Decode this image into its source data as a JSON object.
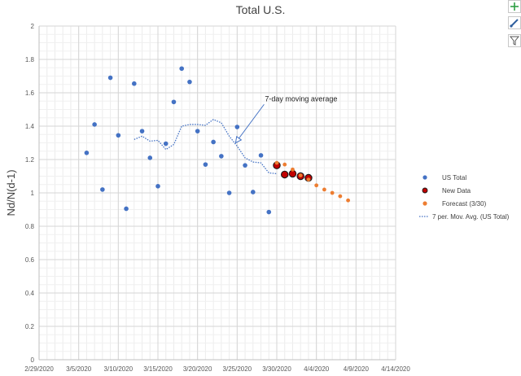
{
  "chart_data": {
    "type": "scatter",
    "title": "Total U.S.",
    "xlabel": "",
    "ylabel": "Nd/N(d-1)",
    "ylim": [
      0,
      2
    ],
    "yticks": [
      0,
      0.2,
      0.4,
      0.6,
      0.8,
      1,
      1.2,
      1.4,
      1.6,
      1.8,
      2
    ],
    "ytick_labels": [
      "0",
      "0.2",
      "0.4",
      "0.6",
      "0.8",
      "1",
      "1.2",
      "1.4",
      "1.6",
      "1.8",
      "2"
    ],
    "x_axis_unit": "days since 2/29/2020",
    "xlim": [
      0,
      45
    ],
    "xticks": [
      0,
      5,
      10,
      15,
      20,
      25,
      30,
      35,
      40,
      45
    ],
    "xtick_labels": [
      "2/29/2020",
      "3/5/2020",
      "3/10/2020",
      "3/15/2020",
      "3/20/2020",
      "3/25/2020",
      "3/30/2020",
      "4/4/2020",
      "4/9/2020",
      "4/14/2020"
    ],
    "grid": true,
    "legend_position": "right",
    "series": [
      {
        "name": "US Total",
        "marker": "dot",
        "color": "#4472c4",
        "x": [
          6,
          7,
          8,
          9,
          10,
          11,
          12,
          13,
          14,
          15,
          16,
          17,
          18,
          19,
          20,
          21,
          22,
          23,
          24,
          25,
          26,
          27,
          28,
          29
        ],
        "y": [
          1.24,
          1.41,
          1.02,
          1.69,
          1.345,
          0.905,
          1.655,
          1.37,
          1.21,
          1.04,
          1.295,
          1.545,
          1.745,
          1.665,
          1.37,
          1.17,
          1.305,
          1.22,
          1.0,
          1.395,
          1.165,
          1.005,
          1.225,
          0.885
        ]
      },
      {
        "name": "New Data",
        "marker": "large-dot",
        "color": "#c00000",
        "x": [
          30,
          31,
          32,
          33,
          34
        ],
        "y": [
          1.165,
          1.11,
          1.115,
          1.1,
          1.09
        ]
      },
      {
        "name": "Forecast (3/30)",
        "marker": "dot",
        "color": "#ed7d31",
        "x": [
          30,
          31,
          32,
          33,
          34,
          35,
          36,
          37,
          38,
          39
        ],
        "y": [
          1.18,
          1.17,
          1.14,
          1.105,
          1.08,
          1.045,
          1.02,
          1.0,
          0.98,
          0.955
        ]
      },
      {
        "name": "7 per. Mov. Avg. (US Total)",
        "marker": "dotted-line",
        "color": "#4472c4",
        "x": [
          12,
          13,
          14,
          15,
          16,
          17,
          18,
          19,
          20,
          21,
          22,
          23,
          24,
          25,
          26,
          27,
          28,
          29,
          30
        ],
        "y": [
          1.32,
          1.34,
          1.31,
          1.315,
          1.26,
          1.29,
          1.4,
          1.41,
          1.41,
          1.405,
          1.44,
          1.42,
          1.34,
          1.28,
          1.21,
          1.185,
          1.18,
          1.12,
          1.115
        ]
      }
    ],
    "annotations": [
      {
        "text": "7-day moving average",
        "x": 28.5,
        "y": 1.55,
        "arrow_to": [
          24.8,
          1.3
        ]
      }
    ]
  }
}
